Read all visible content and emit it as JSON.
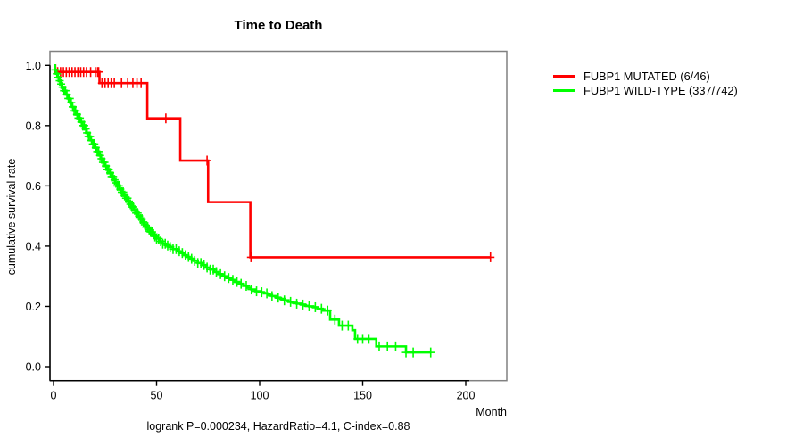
{
  "title": "Time to Death",
  "footer": "logrank P=0.000234, HazardRatio=4.1, C-index=0.88",
  "legend": {
    "items": [
      {
        "label": "FUBP1 MUTATED (6/46)",
        "color": "#ff0000"
      },
      {
        "label": "FUBP1 WILD-TYPE (337/742)",
        "color": "#00ff00"
      }
    ]
  },
  "chart_data": {
    "type": "line",
    "subtype": "kaplan-meier-step",
    "title": "Time to Death",
    "xlabel": "Month",
    "ylabel": "cumulative survival rate",
    "xlim": [
      0,
      220
    ],
    "ylim": [
      0,
      1
    ],
    "xticks": [
      0,
      50,
      100,
      150,
      200
    ],
    "yticks": [
      0.0,
      0.2,
      0.4,
      0.6,
      0.8,
      1.0
    ],
    "grid": false,
    "legend_position": "right-outside",
    "frame_color": "#808080",
    "axis_color": "#000000",
    "annotation": "logrank P=0.000234, HazardRatio=4.1, C-index=0.88",
    "series": [
      {
        "name": "FUBP1 MUTATED (6/46)",
        "color": "#ff0000",
        "steps": [
          [
            0,
            1.0
          ],
          [
            0.8,
            0.978
          ],
          [
            22.3,
            0.941
          ],
          [
            45.5,
            0.824
          ],
          [
            61.5,
            0.684
          ],
          [
            75,
            0.546
          ],
          [
            95.5,
            0.363
          ],
          [
            212,
            0.363
          ]
        ],
        "censor_months": [
          2,
          3.4,
          4.8,
          6.2,
          7.6,
          9,
          10.4,
          11.8,
          13.2,
          14.6,
          16,
          18,
          20.3,
          21.4,
          21.9,
          23.5,
          25,
          26.5,
          28,
          29.5,
          33,
          36,
          38.5,
          40.5,
          42.5,
          54.5,
          74.5,
          95.8,
          212
        ]
      },
      {
        "name": "FUBP1 WILD-TYPE (337/742)",
        "color": "#00ff00",
        "steps": [
          [
            0,
            1.0
          ],
          [
            0.7,
            0.985
          ],
          [
            1.4,
            0.972
          ],
          [
            2.1,
            0.96
          ],
          [
            2.8,
            0.949
          ],
          [
            3.5,
            0.938
          ],
          [
            4.2,
            0.928
          ],
          [
            5,
            0.916
          ],
          [
            6,
            0.903
          ],
          [
            7,
            0.89
          ],
          [
            8,
            0.876
          ],
          [
            9,
            0.862
          ],
          [
            10,
            0.849
          ],
          [
            11,
            0.837
          ],
          [
            12,
            0.825
          ],
          [
            13,
            0.812
          ],
          [
            14,
            0.8
          ],
          [
            15,
            0.789
          ],
          [
            16,
            0.776
          ],
          [
            17,
            0.764
          ],
          [
            18,
            0.751
          ],
          [
            19,
            0.739
          ],
          [
            20,
            0.727
          ],
          [
            21,
            0.714
          ],
          [
            22,
            0.701
          ],
          [
            23,
            0.69
          ],
          [
            24,
            0.678
          ],
          [
            25,
            0.666
          ],
          [
            26,
            0.654
          ],
          [
            27,
            0.643
          ],
          [
            28,
            0.631
          ],
          [
            29,
            0.62
          ],
          [
            30,
            0.61
          ],
          [
            31,
            0.6
          ],
          [
            32,
            0.589
          ],
          [
            33,
            0.579
          ],
          [
            34,
            0.568
          ],
          [
            35,
            0.559
          ],
          [
            36,
            0.549
          ],
          [
            37,
            0.539
          ],
          [
            38,
            0.53
          ],
          [
            39,
            0.52
          ],
          [
            40,
            0.51
          ],
          [
            41,
            0.5
          ],
          [
            42,
            0.49
          ],
          [
            43,
            0.48
          ],
          [
            44,
            0.471
          ],
          [
            45,
            0.463
          ],
          [
            46,
            0.455
          ],
          [
            47,
            0.447
          ],
          [
            48,
            0.44
          ],
          [
            49,
            0.432
          ],
          [
            50,
            0.425
          ],
          [
            51.5,
            0.416
          ],
          [
            53,
            0.408
          ],
          [
            54.5,
            0.402
          ],
          [
            56,
            0.397
          ],
          [
            58,
            0.39
          ],
          [
            60,
            0.383
          ],
          [
            61.5,
            0.377
          ],
          [
            63,
            0.37
          ],
          [
            64.5,
            0.364
          ],
          [
            66,
            0.358
          ],
          [
            68,
            0.351
          ],
          [
            70,
            0.344
          ],
          [
            72,
            0.337
          ],
          [
            74,
            0.329
          ],
          [
            76,
            0.322
          ],
          [
            78,
            0.314
          ],
          [
            80,
            0.307
          ],
          [
            82,
            0.3
          ],
          [
            84,
            0.294
          ],
          [
            86,
            0.288
          ],
          [
            88,
            0.281
          ],
          [
            90,
            0.275
          ],
          [
            92,
            0.268
          ],
          [
            94,
            0.262
          ],
          [
            96,
            0.256
          ],
          [
            98,
            0.25
          ],
          [
            100,
            0.247
          ],
          [
            102,
            0.243
          ],
          [
            104,
            0.238
          ],
          [
            106,
            0.234
          ],
          [
            108,
            0.229
          ],
          [
            110,
            0.225
          ],
          [
            112,
            0.22
          ],
          [
            114,
            0.215
          ],
          [
            116,
            0.212
          ],
          [
            118,
            0.209
          ],
          [
            120,
            0.206
          ],
          [
            122,
            0.202
          ],
          [
            124,
            0.2
          ],
          [
            126,
            0.197
          ],
          [
            128,
            0.192
          ],
          [
            130.6,
            0.186
          ],
          [
            134.2,
            0.156
          ],
          [
            138.5,
            0.136
          ],
          [
            145,
            0.121
          ],
          [
            146.3,
            0.092
          ],
          [
            156.6,
            0.067
          ],
          [
            171,
            0.047
          ],
          [
            183,
            0.047
          ]
        ],
        "censor_months": [
          0.9,
          1.6,
          2.3,
          3,
          3.7,
          4.4,
          5.1,
          5.8,
          6.5,
          7.2,
          7.9,
          8.6,
          9.3,
          10,
          10.7,
          11.4,
          12.1,
          12.8,
          13.5,
          14.2,
          14.9,
          15.6,
          16.3,
          17,
          17.7,
          18.4,
          19.1,
          19.8,
          20.5,
          21.2,
          21.9,
          22.6,
          23.3,
          24,
          24.7,
          25.4,
          26.1,
          26.8,
          27.5,
          28.2,
          28.9,
          29.6,
          30.3,
          31,
          31.7,
          32.4,
          33.1,
          33.8,
          34.5,
          35.2,
          35.9,
          36.6,
          37.3,
          38,
          38.7,
          39.4,
          40.1,
          40.8,
          41.5,
          42.2,
          42.9,
          43.6,
          44.3,
          45,
          45.7,
          46.4,
          47.1,
          47.8,
          48.5,
          49.2,
          50,
          51,
          52,
          53,
          54.2,
          55.4,
          56.6,
          58,
          59.5,
          61,
          62.5,
          64,
          65.5,
          67,
          68.5,
          70,
          71.5,
          73,
          74.5,
          76,
          77.5,
          79,
          81,
          83,
          85,
          87,
          89,
          91,
          93.5,
          96,
          98.5,
          101,
          103.5,
          106,
          109,
          112,
          115,
          118,
          121,
          124,
          127,
          130,
          133,
          136.5,
          140,
          143,
          147.5,
          150,
          153,
          158,
          162,
          166,
          171,
          174.5,
          183
        ]
      }
    ]
  }
}
